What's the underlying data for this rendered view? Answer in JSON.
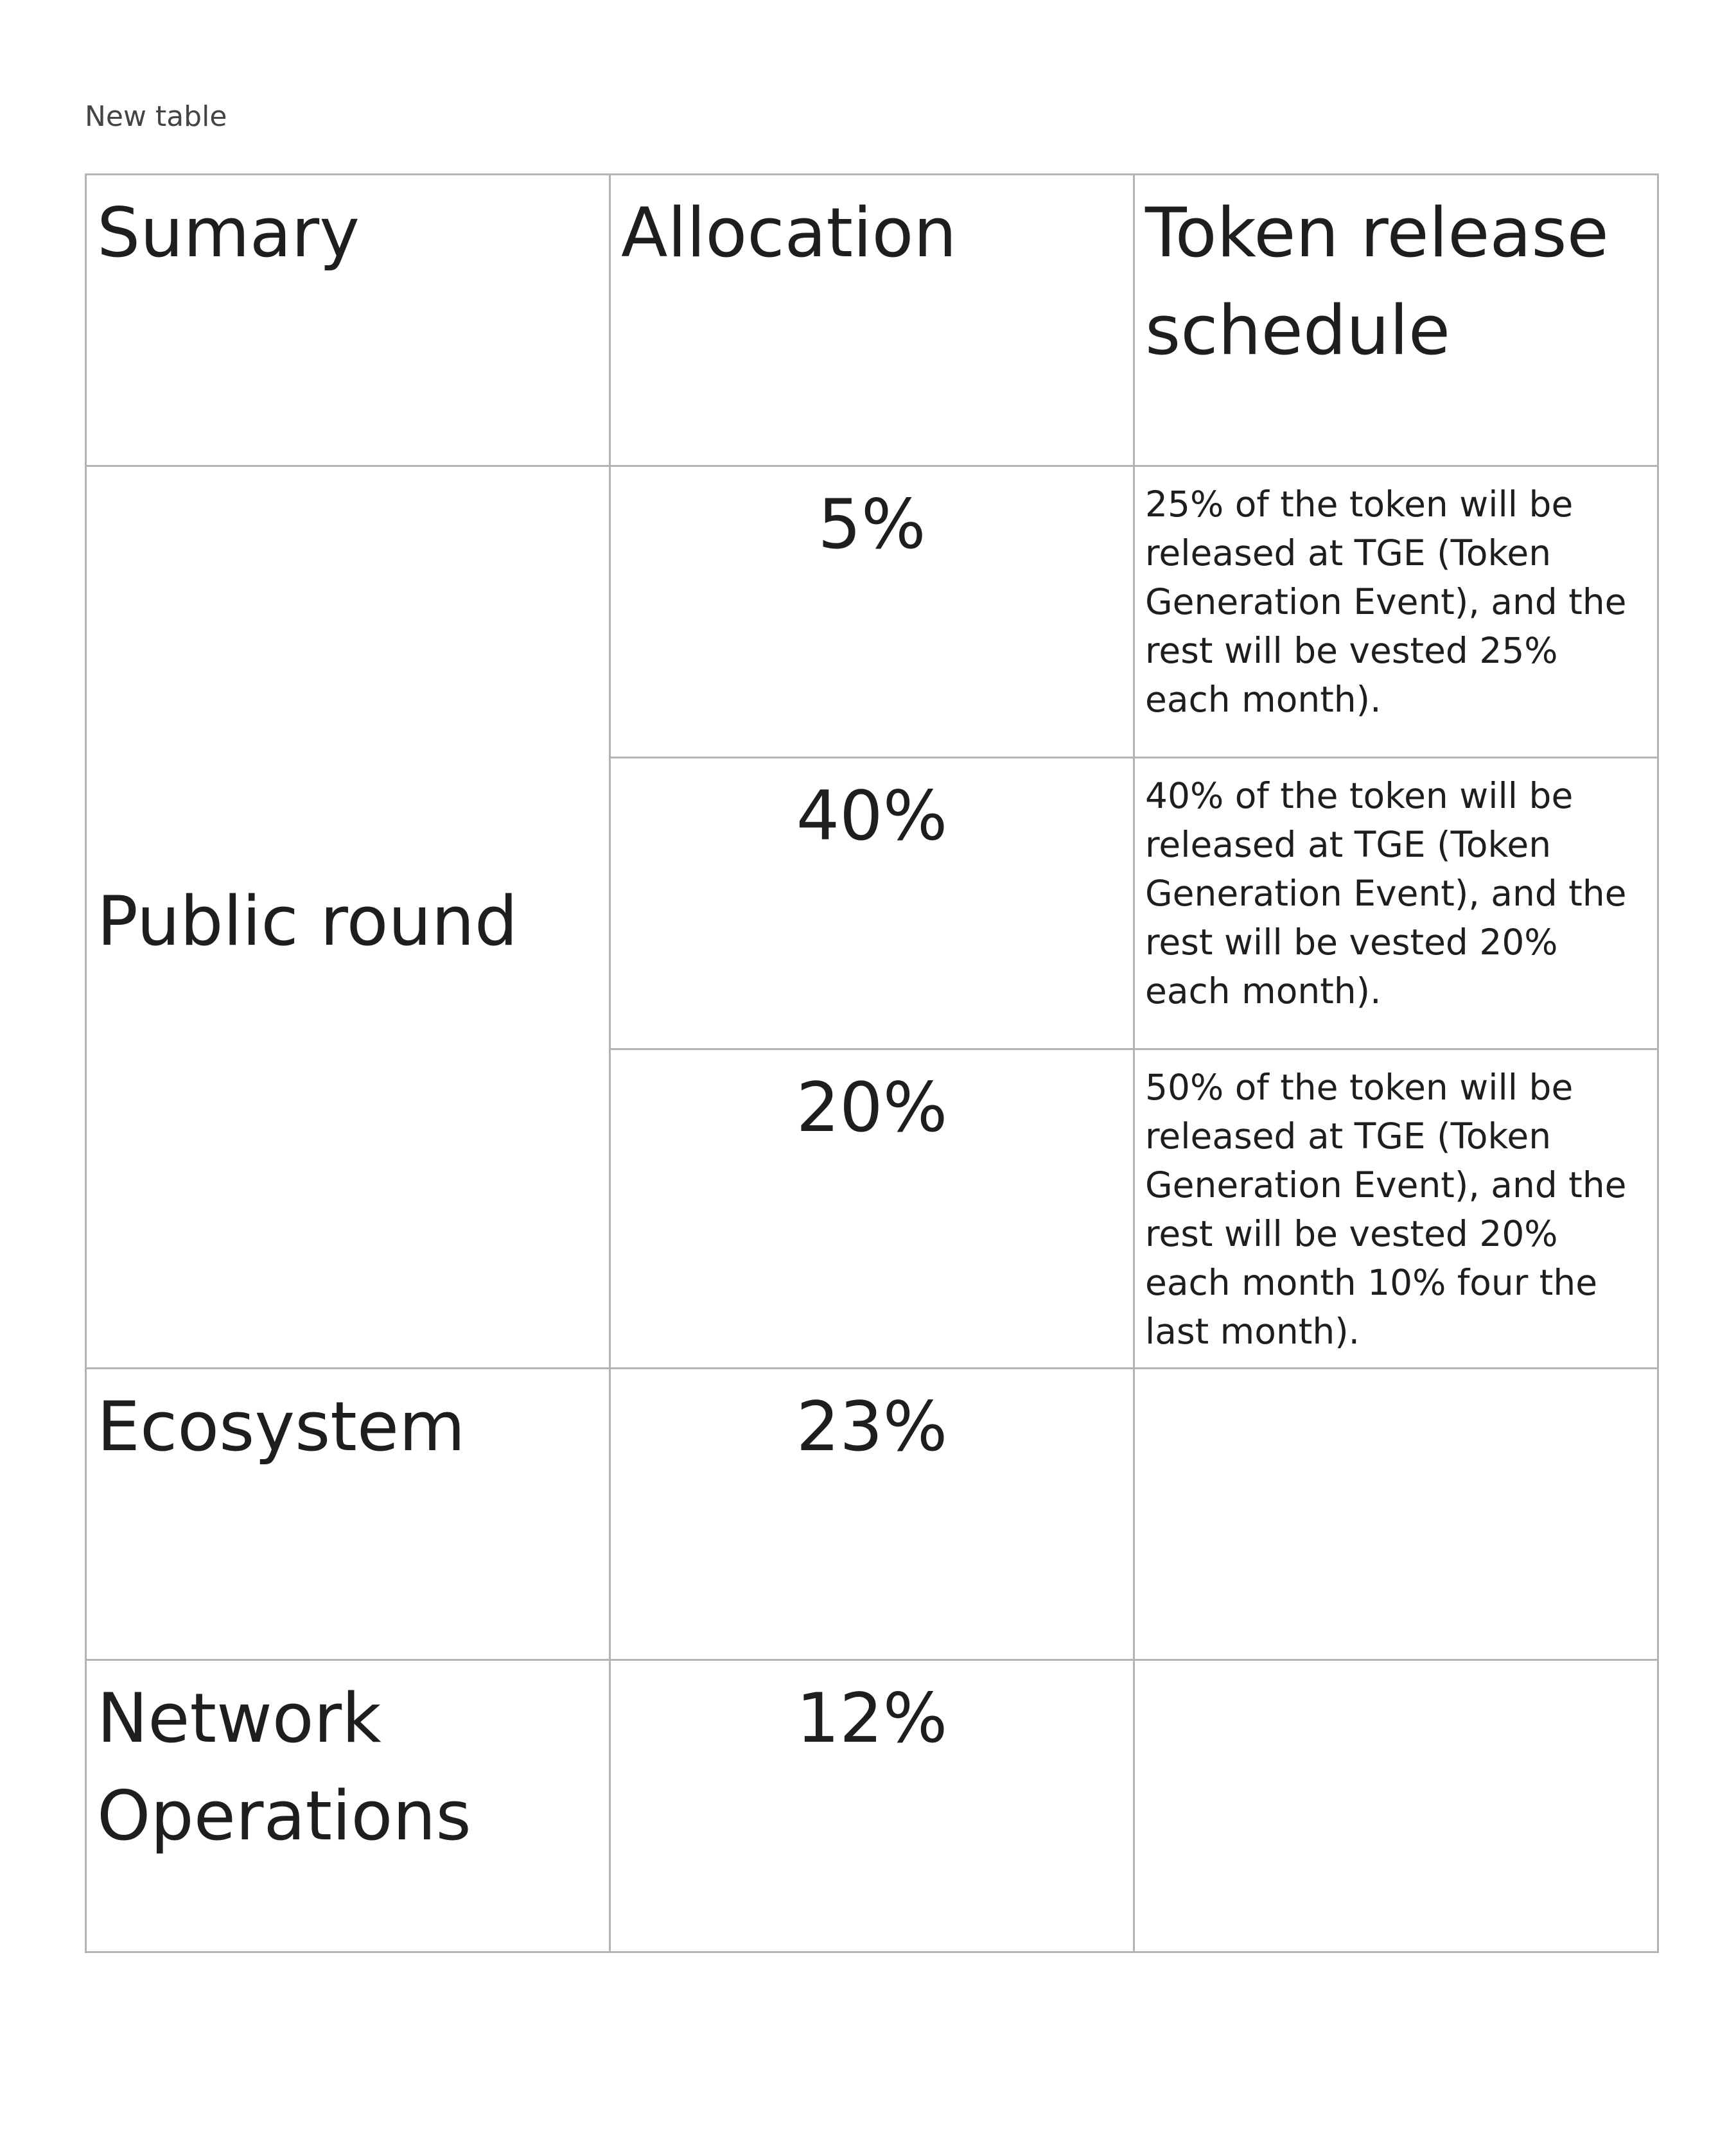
{
  "caption": "New table",
  "table": {
    "header": {
      "summary": "Sumary",
      "allocation": "Allocation",
      "schedule": "Token release schedule"
    },
    "public_round": {
      "label": "Public round",
      "rows": [
        {
          "allocation": "5%",
          "schedule": "25% of the token will be released at TGE (Token Generation Event), and the rest will be vested 25% each month)."
        },
        {
          "allocation": "40%",
          "schedule": "40% of the token will be released at TGE (Token Generation Event), and the rest will be vested 20% each month)."
        },
        {
          "allocation": "20%",
          "schedule": "50% of the token will be released at TGE (Token Generation Event), and the rest will be vested 20% each month 10% four the last month)."
        }
      ]
    },
    "ecosystem": {
      "label": "Ecosystem",
      "allocation": "23%",
      "schedule": ""
    },
    "network_operations": {
      "label": "Network Operations",
      "allocation": "12%",
      "schedule": ""
    }
  }
}
